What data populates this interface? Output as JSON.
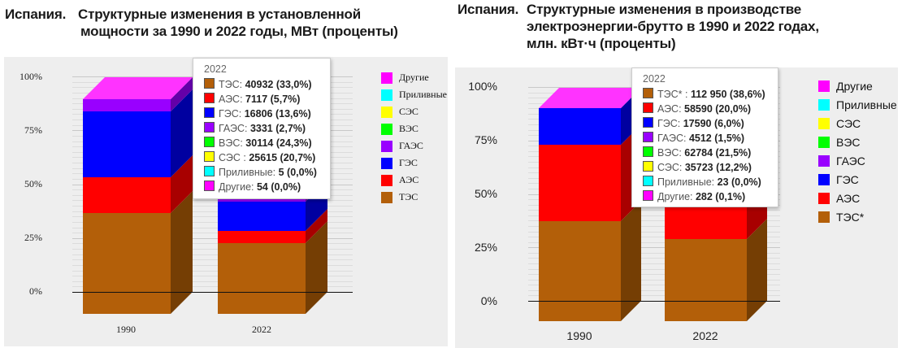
{
  "colors": {
    "ТЭС": "#b35f09",
    "АЭС": "#ff0000",
    "ГЭС": "#0000ff",
    "ГАЭС": "#9900ff",
    "ВЭС": "#00ff00",
    "СЭС": "#ffff00",
    "Приливные": "#00ffff",
    "Другие": "#ff00ff"
  },
  "left": {
    "title_lead": "Испания.",
    "title_line1": "Структурные изменения в установленной",
    "title_line2": "мощности за 1990 и 2022 годы,  МВт (проценты)",
    "y_ticks": [
      "100%",
      "75%",
      "50%",
      "25%",
      "0%"
    ],
    "x_labels": [
      "1990",
      "2022"
    ],
    "legend": [
      "Другие",
      "Приливные",
      "СЭС",
      "ВЭС",
      "ГАЭС",
      "ГЭС",
      "АЭС",
      "ТЭС"
    ],
    "tooltip": {
      "title": "2022",
      "rows": [
        {
          "name": "ТЭС: ",
          "value": "40932 (33,0%)"
        },
        {
          "name": "АЭС: ",
          "value": "7117 (5,7%)"
        },
        {
          "name": "ГЭС: ",
          "value": "16806 (13,6%)"
        },
        {
          "name": "ГАЭС: ",
          "value": "3331 (2,7%)"
        },
        {
          "name": "ВЭС: ",
          "value": "30114 (24,3%)"
        },
        {
          "name": "СЭС : ",
          "value": "25615 (20,7%)"
        },
        {
          "name": "Приливные: ",
          "value": "5 (0,0%)"
        },
        {
          "name": "Другие: ",
          "value": "54 (0,0%)"
        }
      ]
    }
  },
  "right": {
    "title_lead": "Испания.",
    "title_line1": "Структурные изменения в производстве",
    "title_line2": "электроэнергии-брутто  в 1990 и 2022 годах,",
    "title_line3": "млн. кВт·ч  (проценты)",
    "y_ticks": [
      "100%",
      "75%",
      "50%",
      "25%",
      "0%"
    ],
    "x_labels": [
      "1990",
      "2022"
    ],
    "legend": [
      "Другие",
      "Приливные",
      "СЭС",
      "ВЭС",
      "ГАЭС",
      "ГЭС",
      "АЭС",
      "ТЭС*"
    ],
    "tooltip": {
      "title": "2022",
      "rows": [
        {
          "name": "ТЭС* : ",
          "value": "112 950 (38,6%)"
        },
        {
          "name": "АЭС: ",
          "value": "58590 (20,0%)"
        },
        {
          "name": "ГЭС: ",
          "value": "17590 (6,0%)"
        },
        {
          "name": "ГАЭС: ",
          "value": "4512 (1,5%)"
        },
        {
          "name": "ВЭС: ",
          "value": "62784 (21,5%)"
        },
        {
          "name": "СЭС: ",
          "value": "35723 (12,2%)"
        },
        {
          "name": "Приливные: ",
          "value": "23 (0,0%)"
        },
        {
          "name": "Другие: ",
          "value": "282 (0,1%)"
        }
      ]
    }
  },
  "chart_data": [
    {
      "type": "bar",
      "stacked": "percent",
      "title": "Испания. Структурные изменения в установленной мощности за 1990 и 2022 годы, МВт (проценты)",
      "categories": [
        "1990",
        "2022"
      ],
      "ylim": [
        0,
        100
      ],
      "yticks": [
        "0%",
        "25%",
        "50%",
        "75%",
        "100%"
      ],
      "legend_position": "right",
      "series": [
        {
          "name": "ТЭС",
          "values": [
            47.0,
            33.0
          ]
        },
        {
          "name": "АЭС",
          "values": [
            16.5,
            5.7
          ]
        },
        {
          "name": "ГЭС",
          "values": [
            30.5,
            13.6
          ]
        },
        {
          "name": "ГАЭС",
          "values": [
            6.0,
            2.7
          ]
        },
        {
          "name": "ВЭС",
          "values": [
            0.0,
            24.3
          ]
        },
        {
          "name": "СЭС",
          "values": [
            0.0,
            20.7
          ]
        },
        {
          "name": "Приливные",
          "values": [
            0.0,
            0.0
          ]
        },
        {
          "name": "Другие",
          "values": [
            0.0,
            0.0
          ]
        }
      ],
      "tooltip_2022_absolute_MW": {
        "ТЭС": 40932,
        "АЭС": 7117,
        "ГЭС": 16806,
        "ГАЭС": 3331,
        "ВЭС": 30114,
        "СЭС": 25615,
        "Приливные": 5,
        "Другие": 54
      }
    },
    {
      "type": "bar",
      "stacked": "percent",
      "title": "Испания. Структурные изменения в производстве электроэнергии-брутто в 1990 и 2022 годах, млн. кВт·ч (проценты)",
      "categories": [
        "1990",
        "2022"
      ],
      "ylim": [
        0,
        100
      ],
      "yticks": [
        "0%",
        "25%",
        "50%",
        "75%",
        "100%"
      ],
      "legend_position": "right",
      "series": [
        {
          "name": "ТЭС*",
          "values": [
            47.5,
            38.6
          ]
        },
        {
          "name": "АЭС",
          "values": [
            35.5,
            20.0
          ]
        },
        {
          "name": "ГЭС",
          "values": [
            17.0,
            6.0
          ]
        },
        {
          "name": "ГАЭС",
          "values": [
            0.0,
            1.5
          ]
        },
        {
          "name": "ВЭС",
          "values": [
            0.0,
            21.5
          ]
        },
        {
          "name": "СЭС",
          "values": [
            0.0,
            12.2
          ]
        },
        {
          "name": "Приливные",
          "values": [
            0.0,
            0.0
          ]
        },
        {
          "name": "Другие",
          "values": [
            0.0,
            0.1
          ]
        }
      ],
      "tooltip_2022_absolute_GWh": {
        "ТЭС*": 112950,
        "АЭС": 58590,
        "ГЭС": 17590,
        "ГАЭС": 4512,
        "ВЭС": 62784,
        "СЭС": 35723,
        "Приливные": 23,
        "Другие": 282
      }
    }
  ]
}
